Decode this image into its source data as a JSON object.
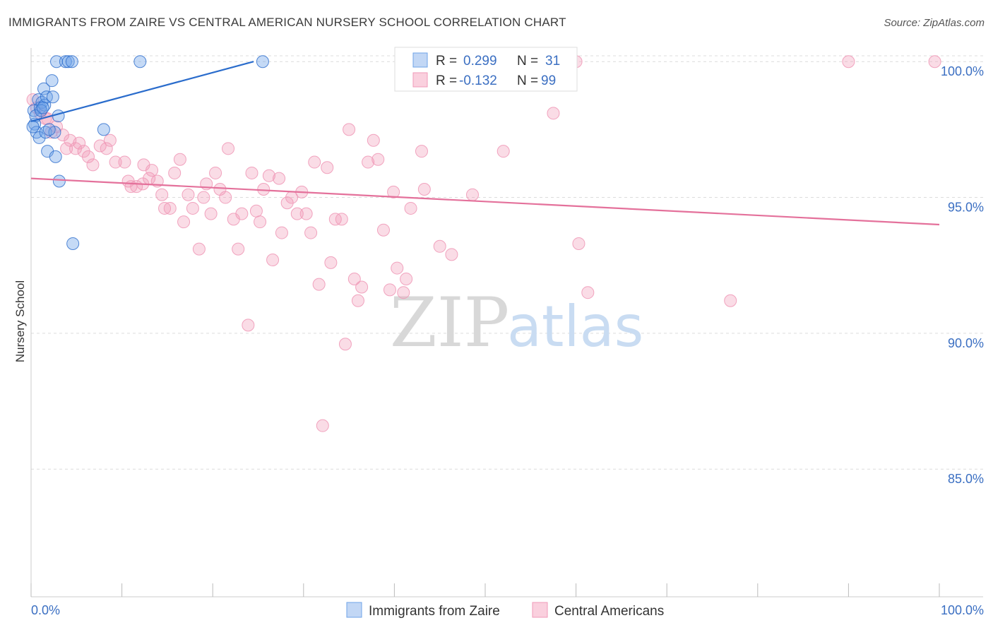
{
  "title": "IMMIGRANTS FROM ZAIRE VS CENTRAL AMERICAN NURSERY SCHOOL CORRELATION CHART",
  "source": "Source: ZipAtlas.com",
  "watermark": {
    "zip": "ZIP",
    "atlas": "atlas"
  },
  "legend_top": {
    "r_label": "R =",
    "n_label": "N =",
    "rows": [
      {
        "r": "0.299",
        "n": "31"
      },
      {
        "r": "-0.132",
        "n": "99"
      }
    ]
  },
  "chart_data": {
    "type": "scatter",
    "title": "IMMIGRANTS FROM ZAIRE VS CENTRAL AMERICAN NURSERY SCHOOL CORRELATION CHART",
    "xlabel": "",
    "ylabel": "Nursery School",
    "xlim": [
      0,
      100
    ],
    "ylim": [
      80.3,
      100.5
    ],
    "x_tick_labels": [
      "0.0%",
      "100.0%"
    ],
    "y_ticks": [
      85,
      90,
      95,
      100
    ],
    "y_tick_labels": [
      "85.0%",
      "90.0%",
      "95.0%",
      "100.0%"
    ],
    "grid": true,
    "legend_position": "bottom-center",
    "colors": {
      "zaire": "#6fa3e8",
      "zaire_line": "#2a6ccc",
      "central": "#f09ab8",
      "central_line": "#e4719b",
      "tick_text": "#3b6fc2"
    },
    "series": [
      {
        "name": "Immigrants from Zaire",
        "r": 0.299,
        "n": 31,
        "trend": {
          "x": [
            0,
            24.5
          ],
          "y": [
            97.8,
            100.0
          ]
        },
        "points": [
          [
            0.3,
            98.2
          ],
          [
            0.4,
            97.7
          ],
          [
            0.6,
            97.4
          ],
          [
            0.8,
            98.6
          ],
          [
            0.9,
            97.2
          ],
          [
            1.0,
            98.3
          ],
          [
            1.2,
            98.5
          ],
          [
            1.4,
            99.0
          ],
          [
            1.5,
            98.4
          ],
          [
            1.6,
            97.4
          ],
          [
            1.7,
            98.7
          ],
          [
            1.8,
            96.7
          ],
          [
            2.3,
            99.3
          ],
          [
            2.4,
            98.7
          ],
          [
            2.6,
            97.4
          ],
          [
            2.7,
            96.5
          ],
          [
            2.8,
            100.0
          ],
          [
            3.0,
            98.0
          ],
          [
            3.1,
            95.6
          ],
          [
            3.8,
            100.0
          ],
          [
            4.1,
            100.0
          ],
          [
            4.5,
            100.0
          ],
          [
            4.6,
            93.3
          ],
          [
            8.0,
            97.5
          ],
          [
            12.0,
            100.0
          ],
          [
            25.5,
            100.0
          ],
          [
            0.5,
            98.0
          ],
          [
            1.1,
            98.2
          ],
          [
            2.0,
            97.5
          ],
          [
            0.2,
            97.6
          ],
          [
            1.3,
            98.3
          ]
        ]
      },
      {
        "name": "Central Americans",
        "r": -0.132,
        "n": 99,
        "trend": {
          "x": [
            0,
            100
          ],
          "y": [
            95.7,
            94.0
          ]
        },
        "points": [
          [
            0.2,
            98.6
          ],
          [
            0.6,
            98.3
          ],
          [
            1.0,
            98.1
          ],
          [
            1.6,
            97.9
          ],
          [
            2.2,
            97.4
          ],
          [
            2.8,
            97.6
          ],
          [
            3.5,
            97.3
          ],
          [
            3.9,
            96.8
          ],
          [
            4.3,
            97.1
          ],
          [
            4.9,
            96.8
          ],
          [
            5.3,
            97.0
          ],
          [
            5.8,
            96.7
          ],
          [
            6.3,
            96.5
          ],
          [
            6.8,
            96.2
          ],
          [
            7.6,
            96.9
          ],
          [
            8.3,
            96.8
          ],
          [
            8.7,
            97.1
          ],
          [
            9.3,
            96.3
          ],
          [
            10.3,
            96.3
          ],
          [
            10.7,
            95.6
          ],
          [
            11.0,
            95.4
          ],
          [
            11.6,
            95.4
          ],
          [
            12.3,
            95.5
          ],
          [
            12.4,
            96.2
          ],
          [
            13.0,
            95.7
          ],
          [
            13.3,
            96.0
          ],
          [
            13.9,
            95.6
          ],
          [
            14.4,
            95.1
          ],
          [
            14.7,
            94.6
          ],
          [
            15.3,
            94.6
          ],
          [
            15.8,
            95.9
          ],
          [
            16.4,
            96.4
          ],
          [
            16.8,
            94.1
          ],
          [
            17.3,
            95.1
          ],
          [
            17.8,
            94.6
          ],
          [
            18.5,
            93.1
          ],
          [
            19.0,
            95.0
          ],
          [
            19.3,
            95.5
          ],
          [
            19.8,
            94.4
          ],
          [
            20.3,
            95.9
          ],
          [
            20.8,
            95.3
          ],
          [
            21.4,
            95.0
          ],
          [
            21.7,
            96.8
          ],
          [
            22.3,
            94.2
          ],
          [
            22.8,
            93.1
          ],
          [
            23.2,
            94.4
          ],
          [
            23.9,
            90.3
          ],
          [
            24.3,
            95.9
          ],
          [
            24.8,
            94.5
          ],
          [
            25.2,
            94.1
          ],
          [
            25.6,
            95.3
          ],
          [
            26.2,
            95.8
          ],
          [
            26.6,
            92.7
          ],
          [
            27.3,
            95.7
          ],
          [
            27.6,
            93.7
          ],
          [
            28.2,
            94.8
          ],
          [
            28.7,
            95.0
          ],
          [
            29.3,
            94.4
          ],
          [
            29.8,
            95.2
          ],
          [
            30.3,
            94.4
          ],
          [
            30.8,
            93.7
          ],
          [
            31.2,
            96.3
          ],
          [
            31.7,
            91.8
          ],
          [
            32.1,
            86.6
          ],
          [
            32.6,
            96.1
          ],
          [
            33.0,
            92.6
          ],
          [
            33.5,
            94.2
          ],
          [
            34.2,
            94.2
          ],
          [
            34.6,
            89.6
          ],
          [
            35.0,
            97.5
          ],
          [
            35.6,
            92.0
          ],
          [
            36.0,
            91.2
          ],
          [
            36.4,
            91.7
          ],
          [
            37.1,
            96.3
          ],
          [
            37.7,
            97.1
          ],
          [
            38.2,
            96.4
          ],
          [
            38.8,
            93.8
          ],
          [
            39.5,
            91.6
          ],
          [
            39.9,
            95.2
          ],
          [
            40.3,
            92.4
          ],
          [
            41.0,
            91.5
          ],
          [
            41.3,
            92.0
          ],
          [
            41.8,
            94.6
          ],
          [
            43.0,
            96.7
          ],
          [
            43.3,
            95.3
          ],
          [
            45.0,
            93.2
          ],
          [
            46.3,
            92.9
          ],
          [
            48.0,
            99.3
          ],
          [
            48.6,
            95.1
          ],
          [
            50.0,
            100.0
          ],
          [
            52.0,
            96.7
          ],
          [
            57.5,
            98.1
          ],
          [
            60.0,
            100.0
          ],
          [
            60.3,
            93.3
          ],
          [
            61.3,
            91.5
          ],
          [
            77.0,
            91.2
          ],
          [
            90.0,
            100.0
          ],
          [
            99.5,
            100.0
          ],
          [
            1.8,
            97.9
          ]
        ]
      }
    ]
  },
  "legend_bottom": [
    {
      "label": "Immigrants from Zaire"
    },
    {
      "label": "Central Americans"
    }
  ]
}
